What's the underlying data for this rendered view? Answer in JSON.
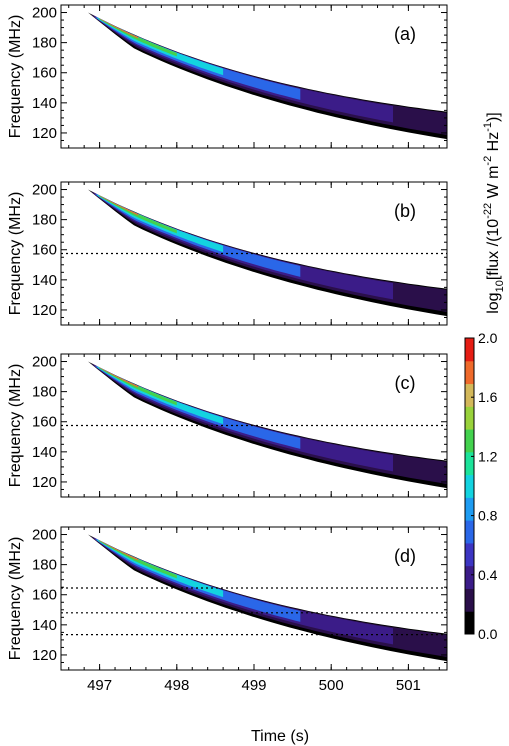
{
  "chart_data": {
    "type": "heatmap",
    "panels": [
      {
        "label": "(a)",
        "ylabel": "Frequency (MHz)",
        "ylim": [
          110,
          205
        ],
        "yticks": [
          "120",
          "140",
          "160",
          "180",
          "200"
        ],
        "hlines": []
      },
      {
        "label": "(b)",
        "ylabel": "Frequency (MHz)",
        "ylim": [
          110,
          205
        ],
        "yticks": [
          "120",
          "140",
          "160",
          "180",
          "200"
        ],
        "hlines": [
          157.5
        ]
      },
      {
        "label": "(c)",
        "ylabel": "Frequency (MHz)",
        "ylim": [
          110,
          205
        ],
        "yticks": [
          "120",
          "140",
          "160",
          "180",
          "200"
        ],
        "hlines": [
          157.5
        ]
      },
      {
        "label": "(d)",
        "ylabel": "Frequency (MHz)",
        "ylim": [
          110,
          205
        ],
        "yticks": [
          "120",
          "140",
          "160",
          "180",
          "200"
        ],
        "hlines": [
          164.5,
          148.0,
          133.5
        ]
      }
    ],
    "xlabel": "Time (s)",
    "xlim": [
      496.5,
      501.5
    ],
    "xticks": [
      "497",
      "498",
      "499",
      "500",
      "501"
    ],
    "colorbar": {
      "label_prefix": "log",
      "label_sub": "10",
      "label_main": "[flux /(10",
      "label_exp1": "-22",
      "label_mid": " W m",
      "label_exp2": "-2",
      "label_hz": " Hz",
      "label_exp3": "-1",
      "label_end": ")]",
      "range": [
        0.0,
        2.0
      ],
      "ticks": [
        "0.0",
        "0.4",
        "0.8",
        "1.2",
        "1.6",
        "2.0"
      ],
      "colors": [
        "#000000",
        "#2a0f4a",
        "#3b1c88",
        "#3c35c2",
        "#2a67e8",
        "#1e9cf2",
        "#13d3e0",
        "#1ce39a",
        "#43d24e",
        "#99d23b",
        "#d3b85a",
        "#ef6a2b",
        "#e51d14"
      ]
    }
  }
}
